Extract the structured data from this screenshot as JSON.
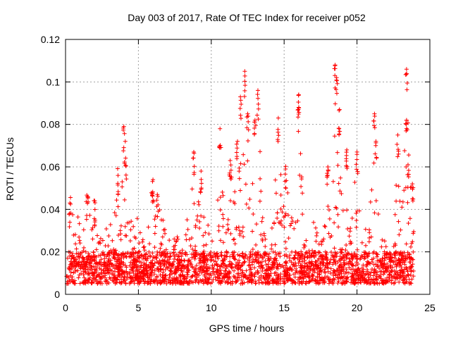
{
  "chart_data": {
    "type": "scatter",
    "title": "Day 003 of 2017, Rate Of TEC Index for receiver p052",
    "xlabel": "GPS time / hours",
    "ylabel": "ROTI / TECUs",
    "xlim": [
      0,
      25
    ],
    "ylim": [
      0,
      0.12
    ],
    "xticks": [
      0,
      5,
      10,
      15,
      20,
      25
    ],
    "xtick_labels": [
      "0",
      "5",
      "10",
      "15",
      "20",
      "25"
    ],
    "yticks": [
      0,
      0.02,
      0.04,
      0.06,
      0.08,
      0.1,
      0.12
    ],
    "ytick_labels": [
      "0",
      "0.02",
      "0.04",
      "0.06",
      "0.08",
      "0.1",
      "0.12"
    ],
    "grid": true,
    "marker": "+",
    "series_color": "#ff0000",
    "x_data_range_hours": [
      0,
      23.9
    ],
    "baseline_band": [
      0.005,
      0.02
    ],
    "spikes": [
      {
        "x": 0.3,
        "y": 0.043
      },
      {
        "x": 1.5,
        "y": 0.046
      },
      {
        "x": 2.0,
        "y": 0.044
      },
      {
        "x": 4.0,
        "y": 0.079
      },
      {
        "x": 4.1,
        "y": 0.072
      },
      {
        "x": 3.6,
        "y": 0.056
      },
      {
        "x": 6.0,
        "y": 0.054
      },
      {
        "x": 6.3,
        "y": 0.047
      },
      {
        "x": 8.8,
        "y": 0.067
      },
      {
        "x": 9.3,
        "y": 0.058
      },
      {
        "x": 10.6,
        "y": 0.078
      },
      {
        "x": 11.3,
        "y": 0.063
      },
      {
        "x": 11.8,
        "y": 0.072
      },
      {
        "x": 12.0,
        "y": 0.093
      },
      {
        "x": 12.3,
        "y": 0.105
      },
      {
        "x": 12.5,
        "y": 0.085
      },
      {
        "x": 13.2,
        "y": 0.096
      },
      {
        "x": 13.0,
        "y": 0.082
      },
      {
        "x": 14.6,
        "y": 0.083
      },
      {
        "x": 15.1,
        "y": 0.059
      },
      {
        "x": 16.0,
        "y": 0.094
      },
      {
        "x": 16.0,
        "y": 0.088
      },
      {
        "x": 18.0,
        "y": 0.06
      },
      {
        "x": 18.5,
        "y": 0.108
      },
      {
        "x": 18.6,
        "y": 0.102
      },
      {
        "x": 18.8,
        "y": 0.087
      },
      {
        "x": 19.3,
        "y": 0.068
      },
      {
        "x": 20.0,
        "y": 0.067
      },
      {
        "x": 21.2,
        "y": 0.085
      },
      {
        "x": 21.3,
        "y": 0.072
      },
      {
        "x": 22.8,
        "y": 0.075
      },
      {
        "x": 23.4,
        "y": 0.106
      },
      {
        "x": 23.4,
        "y": 0.082
      },
      {
        "x": 23.5,
        "y": 0.061
      },
      {
        "x": 23.8,
        "y": 0.052
      }
    ]
  }
}
